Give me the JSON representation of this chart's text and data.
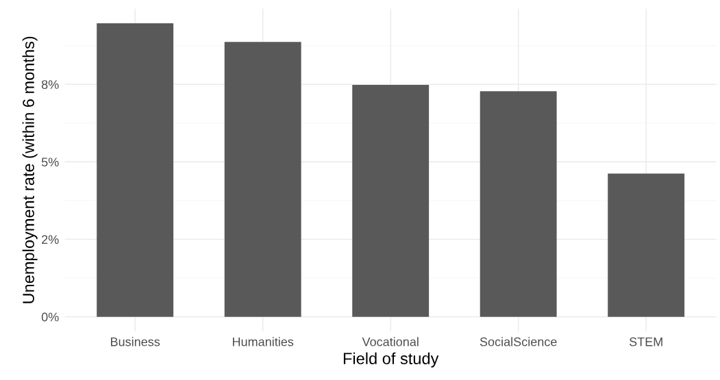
{
  "chart_data": {
    "type": "bar",
    "xlabel": "Field of study",
    "ylabel": "Unemployment rate (within 6 months)",
    "categories": [
      "Business",
      "Humanities",
      "Vocational",
      "SocialScience",
      "STEM"
    ],
    "values": [
      9.47,
      8.87,
      7.48,
      7.28,
      4.62
    ],
    "color": "#595959",
    "ylim": [
      -0.47,
      9.94
    ],
    "yticks": [
      {
        "value": 0,
        "label": "0%"
      },
      {
        "value": 2.5,
        "label": "2%"
      },
      {
        "value": 5,
        "label": "5%"
      },
      {
        "value": 7.5,
        "label": "8%"
      }
    ],
    "grid": true,
    "legend": false
  }
}
